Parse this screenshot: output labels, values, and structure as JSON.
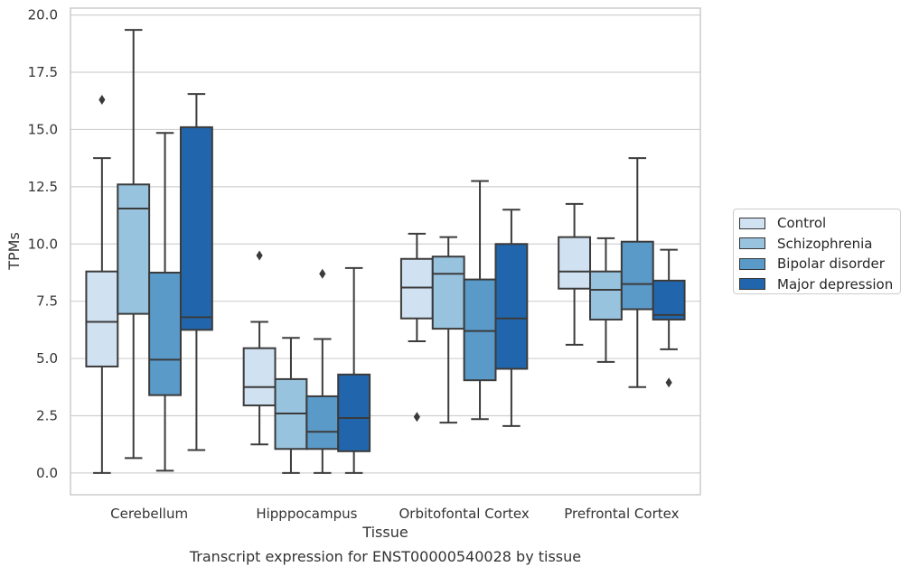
{
  "chart_data": {
    "type": "boxplot",
    "title": "Transcript expression for ENST00000540028 by tissue",
    "xlabel": "Tissue",
    "ylabel": "TPMs",
    "ylim": [
      -0.95,
      20.3
    ],
    "yticks": [
      "0.0",
      "2.5",
      "5.0",
      "7.5",
      "10.0",
      "12.5",
      "15.0",
      "17.5",
      "20.0"
    ],
    "ytick_values": [
      0,
      2.5,
      5,
      7.5,
      10,
      12.5,
      15,
      17.5,
      20
    ],
    "grid": "horizontal",
    "legend_position": "right",
    "categories": [
      "Cerebellum",
      "Hipppocampus",
      "Orbitofontal Cortex",
      "Prefrontal Cortex"
    ],
    "series": [
      {
        "name": "Control",
        "color": "#d0e1f1",
        "boxes": [
          {
            "whislo": 0.0,
            "q1": 4.65,
            "med": 6.6,
            "q3": 8.8,
            "whishi": 13.75,
            "fliers": [
              16.3
            ]
          },
          {
            "whislo": 1.25,
            "q1": 2.95,
            "med": 3.75,
            "q3": 5.45,
            "whishi": 6.6,
            "fliers": [
              9.5
            ]
          },
          {
            "whislo": 5.75,
            "q1": 6.75,
            "med": 8.1,
            "q3": 9.35,
            "whishi": 10.45,
            "fliers": [
              2.45
            ]
          },
          {
            "whislo": 5.6,
            "q1": 8.05,
            "med": 8.8,
            "q3": 10.3,
            "whishi": 11.75,
            "fliers": []
          }
        ]
      },
      {
        "name": "Schizophrenia",
        "color": "#98c3de",
        "boxes": [
          {
            "whislo": 0.65,
            "q1": 6.95,
            "med": 11.55,
            "q3": 12.6,
            "whishi": 19.35,
            "fliers": []
          },
          {
            "whislo": 0.0,
            "q1": 1.05,
            "med": 2.6,
            "q3": 4.1,
            "whishi": 5.9,
            "fliers": []
          },
          {
            "whislo": 2.2,
            "q1": 6.3,
            "med": 8.7,
            "q3": 9.45,
            "whishi": 10.3,
            "fliers": []
          },
          {
            "whislo": 4.85,
            "q1": 6.7,
            "med": 8.0,
            "q3": 8.8,
            "whishi": 10.25,
            "fliers": []
          }
        ]
      },
      {
        "name": "Bipolar disorder",
        "color": "#5a9ac9",
        "boxes": [
          {
            "whislo": 0.1,
            "q1": 3.4,
            "med": 4.95,
            "q3": 8.75,
            "whishi": 14.85,
            "fliers": []
          },
          {
            "whislo": 0.0,
            "q1": 1.05,
            "med": 1.8,
            "q3": 3.35,
            "whishi": 5.85,
            "fliers": [
              8.7
            ]
          },
          {
            "whislo": 2.35,
            "q1": 4.05,
            "med": 6.2,
            "q3": 8.45,
            "whishi": 12.75,
            "fliers": []
          },
          {
            "whislo": 3.75,
            "q1": 7.15,
            "med": 8.25,
            "q3": 10.1,
            "whishi": 13.75,
            "fliers": []
          }
        ]
      },
      {
        "name": "Major depression",
        "color": "#2166ac",
        "boxes": [
          {
            "whislo": 1.0,
            "q1": 6.25,
            "med": 6.8,
            "q3": 15.1,
            "whishi": 16.55,
            "fliers": []
          },
          {
            "whislo": 0.0,
            "q1": 0.95,
            "med": 2.4,
            "q3": 4.3,
            "whishi": 8.95,
            "fliers": []
          },
          {
            "whislo": 2.05,
            "q1": 4.55,
            "med": 6.75,
            "q3": 10.0,
            "whishi": 11.5,
            "fliers": []
          },
          {
            "whislo": 5.4,
            "q1": 6.7,
            "med": 6.9,
            "q3": 8.4,
            "whishi": 9.75,
            "fliers": [
              3.95
            ]
          }
        ]
      }
    ]
  }
}
